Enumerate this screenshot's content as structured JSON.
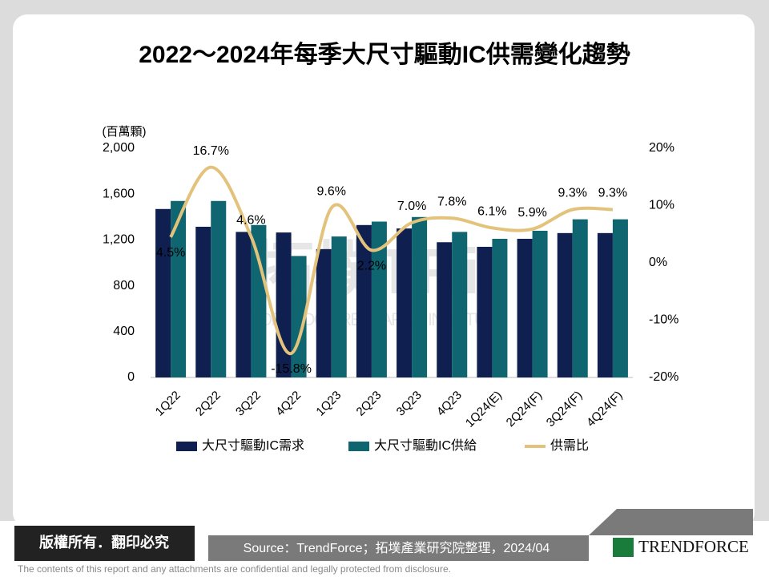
{
  "chart_data": {
    "type": "bar",
    "title": "2022～2024年每季大尺寸驅動IC供需變化趨勢",
    "y_label": "(百萬顆)",
    "categories": [
      "1Q22",
      "2Q22",
      "3Q22",
      "4Q22",
      "1Q23",
      "2Q23",
      "3Q23",
      "4Q23",
      "1Q24(E)",
      "2Q24(F)",
      "3Q24(F)",
      "4Q24(F)"
    ],
    "series": [
      {
        "name": "大尺寸驅動IC需求",
        "color": "#0f2050",
        "type": "bar",
        "values": [
          1470,
          1315,
          1270,
          1265,
          1120,
          1330,
          1300,
          1180,
          1140,
          1210,
          1260,
          1260
        ]
      },
      {
        "name": "大尺寸驅動IC供給",
        "color": "#0f6570",
        "type": "bar",
        "values": [
          1540,
          1540,
          1330,
          1060,
          1230,
          1360,
          1400,
          1270,
          1210,
          1280,
          1380,
          1380
        ]
      },
      {
        "name": "供需比",
        "color": "#e3c27c",
        "type": "line",
        "axis": "y2",
        "values": [
          4.5,
          16.7,
          4.6,
          -15.8,
          9.6,
          2.2,
          7.0,
          7.8,
          6.1,
          5.9,
          9.3,
          9.3
        ],
        "value_labels": [
          "4.5%",
          "16.7%",
          "4.6%",
          "-15.8%",
          "9.6%",
          "2.2%",
          "7.0%",
          "7.8%",
          "6.1%",
          "5.9%",
          "9.3%",
          "9.3%"
        ]
      }
    ],
    "ylim": [
      0,
      2000
    ],
    "yticks": [
      0,
      400,
      800,
      {
        "value": 1200,
        "label": "1,200"
      },
      {
        "value": 1600,
        "label": "1,600"
      },
      {
        "value": 2000,
        "label": "2,000"
      }
    ],
    "y2lim": [
      -20,
      20
    ],
    "y2ticks": [
      {
        "value": -20,
        "label": "-20%"
      },
      {
        "value": -10,
        "label": "-10%"
      },
      {
        "value": 0,
        "label": "0%"
      },
      {
        "value": 10,
        "label": "10%"
      },
      {
        "value": 20,
        "label": "20%"
      }
    ],
    "grid": false
  },
  "watermark": {
    "cn": "拓墣",
    "logo": "TRi",
    "en": "TOPOLOGY RESEARCH INSTITUTE"
  },
  "footer": {
    "rights": "版權所有．翻印必究",
    "source": "Source：TrendForce；拓墣產業研究院整理，2024/04",
    "brand": "TRENDFORCE",
    "disclaimer": "The contents of this report and any attachments are confidential and legally protected from disclosure."
  }
}
